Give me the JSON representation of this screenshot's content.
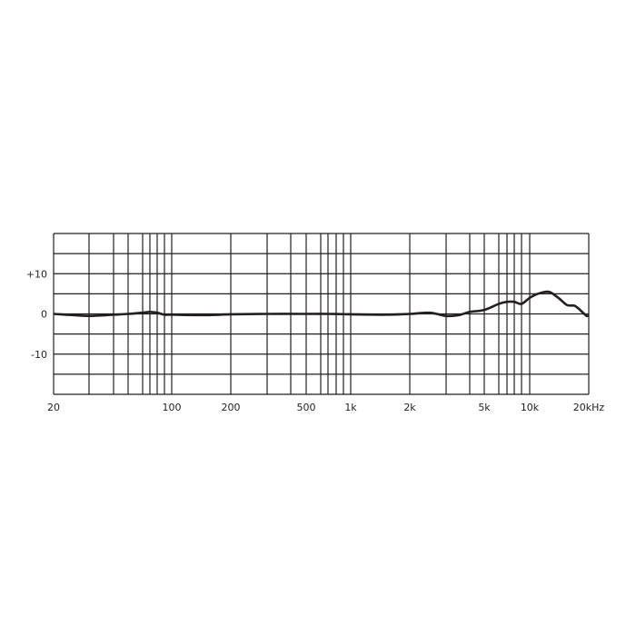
{
  "chart_data": {
    "type": "line",
    "title": "",
    "xlabel": "",
    "ylabel": "",
    "x_scale": "log",
    "xlim": [
      20,
      20000
    ],
    "ylim": [
      -20,
      20
    ],
    "grid": true,
    "x_tick_labels": [
      {
        "value": 20,
        "label": "20"
      },
      {
        "value": 100,
        "label": "100"
      },
      {
        "value": 200,
        "label": "200"
      },
      {
        "value": 500,
        "label": "500"
      },
      {
        "value": 1000,
        "label": "1k"
      },
      {
        "value": 2000,
        "label": "2k"
      },
      {
        "value": 5000,
        "label": "5k"
      },
      {
        "value": 10000,
        "label": "10k"
      },
      {
        "value": 20000,
        "label": "20kHz"
      }
    ],
    "y_tick_labels": [
      {
        "value": 10,
        "label": "+10"
      },
      {
        "value": 0,
        "label": "0"
      },
      {
        "value": -10,
        "label": "-10"
      }
    ],
    "x_gridlines": [
      20,
      30,
      40,
      50,
      60,
      70,
      80,
      90,
      100,
      200,
      300,
      400,
      500,
      600,
      700,
      800,
      900,
      1000,
      2000,
      3000,
      4000,
      5000,
      6000,
      7000,
      8000,
      9000,
      10000,
      20000
    ],
    "y_gridlines": [
      20,
      15,
      10,
      5,
      0,
      -5,
      -10,
      -15,
      -20
    ],
    "line_color": "#231f20",
    "series": [
      {
        "x": [
          20,
          25,
          30,
          40,
          50,
          60,
          70,
          80,
          90,
          100,
          150,
          200,
          300,
          500,
          700,
          1000,
          1500,
          2000,
          2500,
          3000,
          3500,
          4000,
          5000,
          6000,
          7000,
          8000,
          9000,
          10000,
          11000,
          12500,
          14000,
          15500,
          17000,
          18500,
          19500,
          20000
        ],
        "y": [
          0,
          -0.3,
          -0.5,
          -0.2,
          0,
          0.3,
          0.5,
          0.3,
          -0.2,
          -0.2,
          -0.3,
          -0.1,
          0,
          0,
          0,
          -0.1,
          -0.2,
          0,
          0.3,
          -0.5,
          -0.3,
          0.5,
          1,
          2.5,
          3,
          3,
          2.5,
          4,
          5,
          5.5,
          4,
          2.2,
          2,
          0.5,
          -0.5,
          -0.3
        ]
      }
    ]
  }
}
